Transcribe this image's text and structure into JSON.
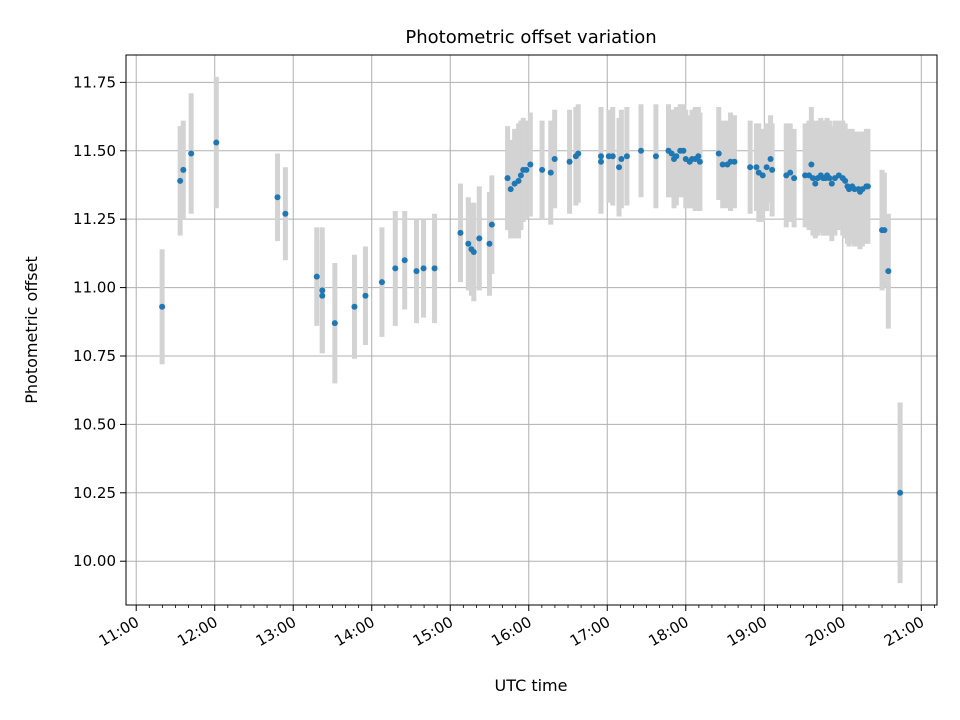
{
  "chart_data": {
    "type": "scatter",
    "title": "Photometric offset variation",
    "xlabel": "UTC time",
    "ylabel": "Photometric offset",
    "grid": true,
    "x_unit": "hours UTC",
    "xlim": [
      10.87,
      21.2
    ],
    "ylim": [
      9.84,
      11.85
    ],
    "x_ticks": [
      11,
      12,
      13,
      14,
      15,
      16,
      17,
      18,
      19,
      20,
      21
    ],
    "x_tick_labels": [
      "11:00",
      "12:00",
      "13:00",
      "14:00",
      "15:00",
      "16:00",
      "17:00",
      "18:00",
      "19:00",
      "20:00",
      "21:00"
    ],
    "y_ticks": [
      10.0,
      10.25,
      10.5,
      10.75,
      11.0,
      11.25,
      11.5,
      11.75
    ],
    "y_tick_labels": [
      "10.00",
      "10.25",
      "10.50",
      "10.75",
      "11.00",
      "11.25",
      "11.50",
      "11.75"
    ],
    "colors": {
      "point": "#1f77b4",
      "error_bar": "#d3d3d3",
      "grid": "#b0b0b0",
      "axis": "#000000"
    },
    "series": [
      {
        "name": "offset",
        "points": [
          [
            11.33,
            10.93,
            0.21
          ],
          [
            11.56,
            11.39,
            0.2
          ],
          [
            11.6,
            11.43,
            0.18
          ],
          [
            11.7,
            11.49,
            0.22
          ],
          [
            12.02,
            11.53,
            0.24
          ],
          [
            12.8,
            11.33,
            0.16
          ],
          [
            12.9,
            11.27,
            0.17
          ],
          [
            13.3,
            11.04,
            0.18
          ],
          [
            13.37,
            10.99,
            0.23
          ],
          [
            13.37,
            10.97,
            0.21
          ],
          [
            13.53,
            10.87,
            0.22
          ],
          [
            13.78,
            10.93,
            0.19
          ],
          [
            13.92,
            10.97,
            0.18
          ],
          [
            14.13,
            11.02,
            0.2
          ],
          [
            14.3,
            11.07,
            0.21
          ],
          [
            14.42,
            11.1,
            0.18
          ],
          [
            14.57,
            11.06,
            0.19
          ],
          [
            14.66,
            11.07,
            0.18
          ],
          [
            14.8,
            11.07,
            0.2
          ],
          [
            15.13,
            11.2,
            0.18
          ],
          [
            15.23,
            11.16,
            0.17
          ],
          [
            15.27,
            11.14,
            0.17
          ],
          [
            15.3,
            11.13,
            0.18
          ],
          [
            15.37,
            11.18,
            0.19
          ],
          [
            15.5,
            11.16,
            0.19
          ],
          [
            15.53,
            11.23,
            0.18
          ],
          [
            15.73,
            11.4,
            0.19
          ],
          [
            15.77,
            11.36,
            0.18
          ],
          [
            15.82,
            11.38,
            0.2
          ],
          [
            15.87,
            11.39,
            0.21
          ],
          [
            15.9,
            11.41,
            0.2
          ],
          [
            15.93,
            11.43,
            0.19
          ],
          [
            15.97,
            11.43,
            0.18
          ],
          [
            16.02,
            11.45,
            0.19
          ],
          [
            16.17,
            11.43,
            0.18
          ],
          [
            16.28,
            11.42,
            0.19
          ],
          [
            16.33,
            11.47,
            0.18
          ],
          [
            16.52,
            11.46,
            0.19
          ],
          [
            16.6,
            11.48,
            0.18
          ],
          [
            16.63,
            11.49,
            0.18
          ],
          [
            16.92,
            11.48,
            0.18
          ],
          [
            16.92,
            11.46,
            0.19
          ],
          [
            17.02,
            11.48,
            0.17
          ],
          [
            17.07,
            11.48,
            0.18
          ],
          [
            17.15,
            11.44,
            0.18
          ],
          [
            17.18,
            11.47,
            0.18
          ],
          [
            17.25,
            11.48,
            0.18
          ],
          [
            17.43,
            11.5,
            0.17
          ],
          [
            17.62,
            11.48,
            0.19
          ],
          [
            17.78,
            11.5,
            0.17
          ],
          [
            17.82,
            11.49,
            0.16
          ],
          [
            17.85,
            11.47,
            0.18
          ],
          [
            17.88,
            11.48,
            0.18
          ],
          [
            17.93,
            11.5,
            0.17
          ],
          [
            17.97,
            11.5,
            0.17
          ],
          [
            18.0,
            11.47,
            0.18
          ],
          [
            18.05,
            11.46,
            0.17
          ],
          [
            18.08,
            11.47,
            0.18
          ],
          [
            18.12,
            11.47,
            0.19
          ],
          [
            18.16,
            11.48,
            0.18
          ],
          [
            18.18,
            11.46,
            0.18
          ],
          [
            18.42,
            11.49,
            0.17
          ],
          [
            18.47,
            11.45,
            0.16
          ],
          [
            18.53,
            11.45,
            0.16
          ],
          [
            18.57,
            11.46,
            0.18
          ],
          [
            18.62,
            11.46,
            0.17
          ],
          [
            18.82,
            11.44,
            0.17
          ],
          [
            18.9,
            11.44,
            0.16
          ],
          [
            18.93,
            11.42,
            0.18
          ],
          [
            18.98,
            11.41,
            0.17
          ],
          [
            19.03,
            11.44,
            0.16
          ],
          [
            19.08,
            11.47,
            0.16
          ],
          [
            19.1,
            11.43,
            0.17
          ],
          [
            19.28,
            11.41,
            0.19
          ],
          [
            19.33,
            11.42,
            0.18
          ],
          [
            19.38,
            11.4,
            0.18
          ],
          [
            19.52,
            11.41,
            0.19
          ],
          [
            19.57,
            11.41,
            0.2
          ],
          [
            19.6,
            11.45,
            0.21
          ],
          [
            19.62,
            11.4,
            0.21
          ],
          [
            19.65,
            11.38,
            0.2
          ],
          [
            19.68,
            11.4,
            0.21
          ],
          [
            19.72,
            11.41,
            0.21
          ],
          [
            19.75,
            11.4,
            0.21
          ],
          [
            19.78,
            11.4,
            0.21
          ],
          [
            19.8,
            11.41,
            0.21
          ],
          [
            19.83,
            11.4,
            0.21
          ],
          [
            19.86,
            11.38,
            0.21
          ],
          [
            19.9,
            11.4,
            0.21
          ],
          [
            19.95,
            11.41,
            0.2
          ],
          [
            20.0,
            11.4,
            0.21
          ],
          [
            20.03,
            11.39,
            0.21
          ],
          [
            20.06,
            11.37,
            0.21
          ],
          [
            20.08,
            11.36,
            0.21
          ],
          [
            20.12,
            11.37,
            0.21
          ],
          [
            20.15,
            11.36,
            0.21
          ],
          [
            20.2,
            11.36,
            0.21
          ],
          [
            20.22,
            11.35,
            0.21
          ],
          [
            20.25,
            11.36,
            0.21
          ],
          [
            20.3,
            11.37,
            0.21
          ],
          [
            20.32,
            11.37,
            0.21
          ],
          [
            20.5,
            11.21,
            0.22
          ],
          [
            20.53,
            11.21,
            0.21
          ],
          [
            20.58,
            11.06,
            0.21
          ],
          [
            20.73,
            10.25,
            0.33
          ]
        ]
      }
    ]
  }
}
